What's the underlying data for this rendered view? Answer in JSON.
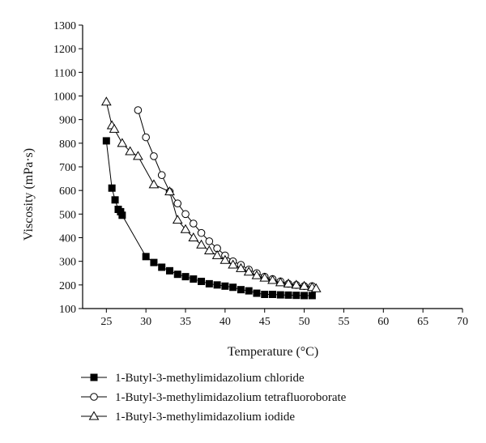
{
  "chart_data": {
    "type": "line",
    "title": "",
    "xlabel": "Temperature (°C)",
    "ylabel": "Viscosity (mPa·s)",
    "xlim": [
      22,
      70
    ],
    "ylim": [
      100,
      1300
    ],
    "xticks": [
      25,
      30,
      35,
      40,
      45,
      50,
      55,
      60,
      65,
      70
    ],
    "yticks": [
      100,
      200,
      300,
      400,
      500,
      600,
      700,
      800,
      900,
      1000,
      1100,
      1200,
      1300
    ],
    "grid": false,
    "legend_position": "bottom",
    "series": [
      {
        "name": "1-Butyl-3-methylimidazolium chloride",
        "marker": "filled-square",
        "color": "#000000",
        "x": [
          25,
          25.7,
          26.1,
          26.5,
          26.8,
          27,
          30,
          31,
          32,
          33,
          34,
          35,
          36,
          37,
          38,
          39,
          40,
          41,
          42,
          43,
          44,
          45,
          46,
          47,
          48,
          49,
          50,
          51
        ],
        "y": [
          810,
          610,
          560,
          520,
          510,
          495,
          320,
          295,
          275,
          260,
          245,
          235,
          225,
          215,
          205,
          200,
          195,
          190,
          180,
          175,
          165,
          160,
          160,
          158,
          157,
          156,
          155,
          155
        ]
      },
      {
        "name": "1-Butyl-3-methylimidazolium tetrafluoroborate",
        "marker": "open-circle",
        "color": "#000000",
        "x": [
          29,
          30,
          31,
          32,
          33,
          34,
          35,
          36,
          37,
          38,
          39,
          40,
          41,
          42,
          43,
          44,
          45,
          46,
          47,
          48,
          49,
          50,
          51
        ],
        "y": [
          940,
          825,
          745,
          665,
          595,
          545,
          500,
          460,
          420,
          385,
          355,
          325,
          300,
          285,
          265,
          250,
          235,
          225,
          215,
          205,
          200,
          195,
          195
        ]
      },
      {
        "name": "1-Butyl-3-methylimidazolium iodide",
        "marker": "open-triangle",
        "color": "#000000",
        "x": [
          25,
          25.7,
          26,
          27,
          28,
          29,
          31,
          33,
          34,
          35,
          36,
          37,
          38,
          39,
          40,
          41,
          42,
          43,
          44,
          45,
          46,
          47,
          48,
          49,
          50,
          51,
          51.5
        ],
        "y": [
          975,
          875,
          860,
          800,
          765,
          745,
          625,
          595,
          475,
          435,
          400,
          370,
          345,
          325,
          305,
          285,
          270,
          255,
          240,
          230,
          220,
          210,
          205,
          200,
          195,
          190,
          185
        ]
      }
    ]
  }
}
